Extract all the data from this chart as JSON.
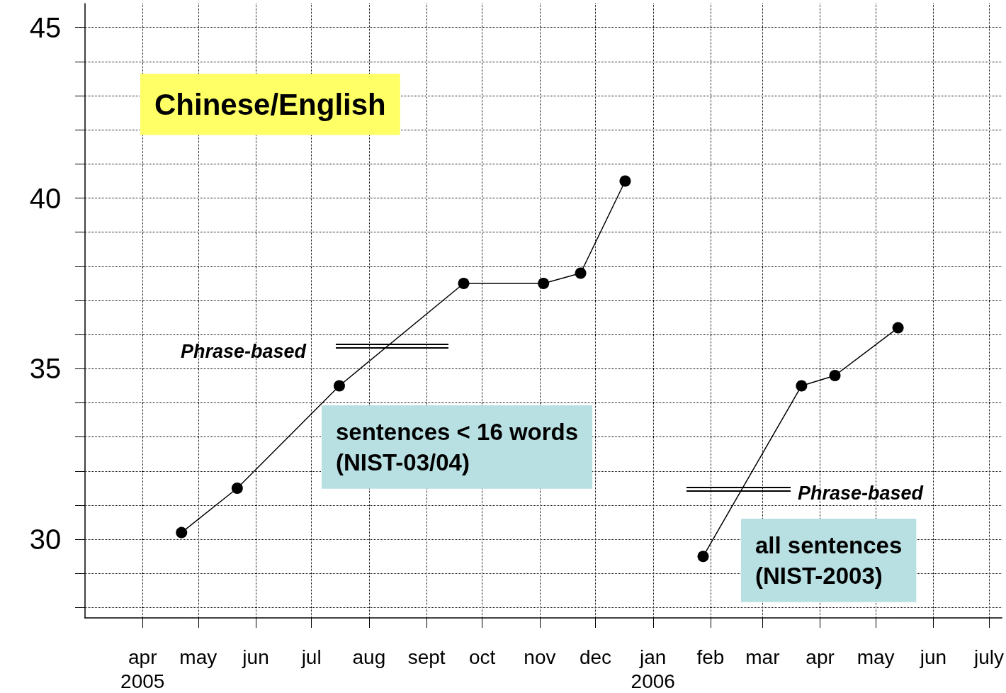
{
  "chart_data": {
    "type": "line",
    "series": [
      {
        "color": "#000000",
        "x": [
          "2005-04-22",
          "2005-05-22",
          "2005-07-16",
          "2005-09-21",
          "2005-11-03",
          "2005-11-23",
          "2005-12-17"
        ],
        "values": [
          30.2,
          31.5,
          34.5,
          37.5,
          37.5,
          37.8,
          40.5
        ]
      },
      {
        "color": "#000000",
        "x": [
          "2006-01-28",
          "2006-03-22",
          "2006-04-09",
          "2006-05-13"
        ],
        "values": [
          29.5,
          34.5,
          34.8,
          36.2
        ]
      }
    ],
    "xlim": [
      "2005-03-01",
      "2006-07-08"
    ],
    "xticks": [
      {
        "value": "2005-04-01",
        "label": "apr\n2005"
      },
      {
        "value": "2005-05-01",
        "label": "may"
      },
      {
        "value": "2005-06-01",
        "label": "jun"
      },
      {
        "value": "2005-07-01",
        "label": "jul"
      },
      {
        "value": "2005-08-01",
        "label": "aug"
      },
      {
        "value": "2005-09-01",
        "label": "sept"
      },
      {
        "value": "2005-10-01",
        "label": "oct"
      },
      {
        "value": "2005-11-01",
        "label": "nov"
      },
      {
        "value": "2005-12-01",
        "label": "dec"
      },
      {
        "value": "2006-01-01",
        "label": "jan\n2006"
      },
      {
        "value": "2006-02-01",
        "label": "feb"
      },
      {
        "value": "2006-03-01",
        "label": "mar"
      },
      {
        "value": "2006-04-01",
        "label": "apr"
      },
      {
        "value": "2006-05-01",
        "label": "may"
      },
      {
        "value": "2006-06-01",
        "label": "jun"
      },
      {
        "value": "2006-07-01",
        "label": "july"
      }
    ],
    "ylim": [
      27.7,
      45.7
    ],
    "yticks": [
      {
        "value": 28,
        "label": null
      },
      {
        "value": 29,
        "label": null
      },
      30,
      {
        "value": 31,
        "label": null
      },
      {
        "value": 32,
        "label": null
      },
      {
        "value": 33,
        "label": null
      },
      {
        "value": 34,
        "label": null
      },
      35,
      {
        "value": 36,
        "label": null
      },
      {
        "value": 37,
        "label": null
      },
      {
        "value": 38,
        "label": null
      },
      {
        "value": 39,
        "label": null
      },
      40,
      {
        "value": 41,
        "label": null
      },
      {
        "value": 42,
        "label": null
      },
      {
        "value": 43,
        "label": null
      },
      {
        "value": 44,
        "label": null
      },
      45
    ],
    "annotations": [
      "Chinese/English",
      "Phrase-based",
      "sentences < 16 words\n(NIST-03/04)",
      "Phrase-based",
      "all sentences\n(NIST-2003)"
    ],
    "grid": true,
    "marker": "circle",
    "line_style": "solid"
  }
}
